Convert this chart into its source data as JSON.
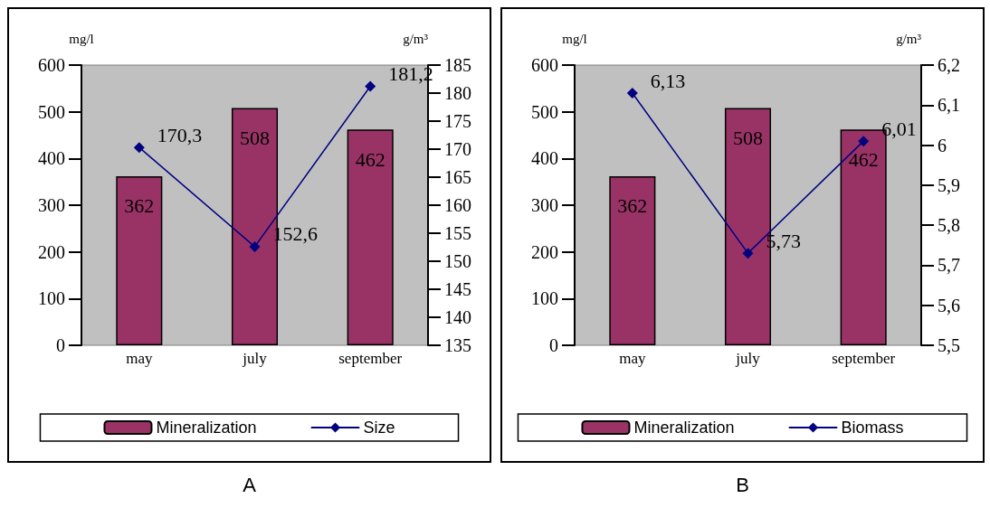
{
  "chart_data": [
    {
      "type": "bar",
      "title": "A",
      "ylabel": "mg/l",
      "y2label": "g/m³",
      "categories": [
        "may",
        "july",
        "september"
      ],
      "series": [
        {
          "name": "Mineralization",
          "color": "#993366",
          "values": [
            362,
            508,
            462
          ],
          "value_labels": [
            "362",
            "508",
            "462"
          ]
        },
        {
          "name": "Size",
          "type": "line",
          "axis": "y2",
          "color": "#000080",
          "values": [
            170.3,
            152.6,
            181.2
          ],
          "value_labels": [
            "170,3",
            "152,6",
            "181,2"
          ]
        }
      ],
      "ylim": [
        0,
        600
      ],
      "yticks": [
        0,
        100,
        200,
        300,
        400,
        500,
        600
      ],
      "y2lim": [
        135,
        185
      ],
      "y2ticks": [
        135,
        140,
        145,
        150,
        155,
        160,
        165,
        170,
        175,
        180,
        185
      ],
      "grid": false,
      "legend": "bottom",
      "marker": "diamond",
      "line_style": "solid"
    },
    {
      "type": "bar",
      "title": "B",
      "ylabel": "mg/l",
      "y2label": "g/m³",
      "categories": [
        "may",
        "july",
        "september"
      ],
      "series": [
        {
          "name": "Mineralization",
          "color": "#993366",
          "values": [
            362,
            508,
            462
          ],
          "value_labels": [
            "362",
            "508",
            "462"
          ]
        },
        {
          "name": "Biomass",
          "type": "line",
          "axis": "y2",
          "color": "#000080",
          "values": [
            6.13,
            5.73,
            6.01
          ],
          "value_labels": [
            "6,13",
            "5,73",
            "6,01"
          ]
        }
      ],
      "ylim": [
        0,
        600
      ],
      "yticks": [
        0,
        100,
        200,
        300,
        400,
        500,
        600
      ],
      "y2lim": [
        5.5,
        6.2
      ],
      "y2ticks": [
        {
          "value": 5.5,
          "label": "5,5"
        },
        {
          "value": 5.6,
          "label": "5,6"
        },
        {
          "value": 5.7,
          "label": "5,7"
        },
        {
          "value": 5.8,
          "label": "5,8"
        },
        {
          "value": 5.9,
          "label": "5,9"
        },
        6,
        {
          "value": 6.1,
          "label": "6,1"
        },
        {
          "value": 6.2,
          "label": "6,2"
        }
      ],
      "grid": false,
      "legend": "bottom",
      "marker": "diamond",
      "line_style": "solid"
    }
  ]
}
